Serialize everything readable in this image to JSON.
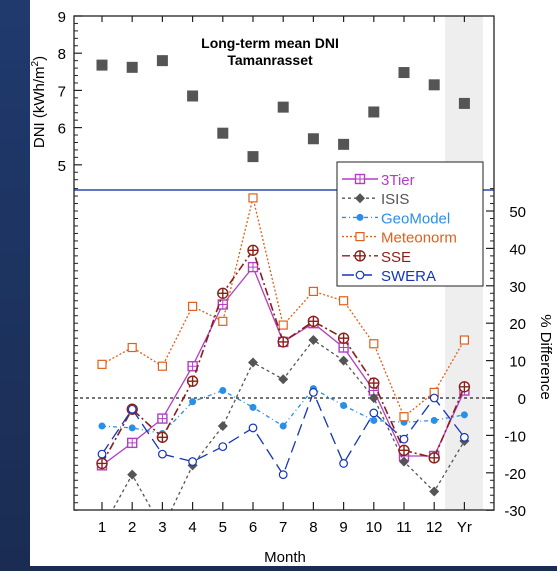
{
  "chart_data": {
    "type": "line",
    "title": "Long-term mean DNI",
    "subtitle": "Tamanrasset",
    "xlabel": "Month",
    "upper_panel": {
      "type": "scatter",
      "ylabel": "DNI (kWh/m²)",
      "ylabel_parts": [
        "DNI (kWh/m",
        "2",
        ")"
      ],
      "ylim": [
        4.5,
        9
      ],
      "yticks": [
        5,
        6,
        7,
        8,
        9
      ],
      "marker_color": "#555555",
      "categories": [
        "1",
        "2",
        "3",
        "4",
        "5",
        "6",
        "7",
        "8",
        "9",
        "10",
        "11",
        "12",
        "Yr"
      ],
      "values": [
        7.68,
        7.62,
        7.8,
        6.85,
        5.85,
        5.22,
        6.55,
        5.7,
        5.55,
        6.42,
        7.48,
        7.15,
        6.65
      ]
    },
    "lower_panel": {
      "ylabel": "% Difference",
      "ylim": [
        -30,
        58
      ],
      "yticks": [
        -30,
        -20,
        -10,
        0,
        10,
        20,
        30,
        40,
        50
      ],
      "reference_line": 0,
      "shaded_category": "Yr",
      "categories": [
        "1",
        "2",
        "3",
        "4",
        "5",
        "6",
        "7",
        "8",
        "9",
        "10",
        "11",
        "12",
        "Yr"
      ],
      "series": [
        {
          "name": "3Tier",
          "color": "#b23ec6",
          "dash": "",
          "marker": "square-plus",
          "values": [
            -18,
            -12,
            -5.5,
            8.5,
            25,
            35,
            15,
            20,
            13.5,
            2,
            -15.5,
            -15.5,
            2
          ]
        },
        {
          "name": "ISIS",
          "color": "#555555",
          "dash": "3,3",
          "marker": "diamond",
          "values": [
            -35,
            -20.5,
            -35,
            -18,
            -7.5,
            9.5,
            5,
            15.5,
            10,
            0,
            -17,
            -25,
            -11.5
          ]
        },
        {
          "name": "GeoModel",
          "color": "#2a8fe8",
          "dash": "4,3,1,3",
          "marker": "dot",
          "values": [
            -7.5,
            -8,
            -9.5,
            -1,
            2,
            -2.5,
            -7.5,
            2.5,
            -2,
            -6,
            -6.5,
            -6,
            -4.5
          ]
        },
        {
          "name": "Meteonorm",
          "color": "#e0601a",
          "dash": "2,2",
          "marker": "square",
          "values": [
            9,
            13.5,
            8.5,
            24.5,
            20.5,
            53.5,
            19.5,
            28.5,
            26,
            14.5,
            -5,
            1.5,
            15.5
          ]
        },
        {
          "name": "SSE",
          "color": "#8c1e18",
          "dash": "8,3,2,3",
          "marker": "circle-plus",
          "values": [
            -17.5,
            -3,
            -10.5,
            4.5,
            28,
            39.5,
            15,
            20.5,
            16,
            4,
            -14,
            -16,
            3
          ]
        },
        {
          "name": "SWERA",
          "color": "#1535b8",
          "dash": "12,6",
          "marker": "circle",
          "values": [
            -15,
            -3,
            -15,
            -17,
            -13,
            -8,
            -20.5,
            1.5,
            -17.5,
            -4,
            -11,
            0,
            -10.5
          ]
        }
      ]
    }
  }
}
